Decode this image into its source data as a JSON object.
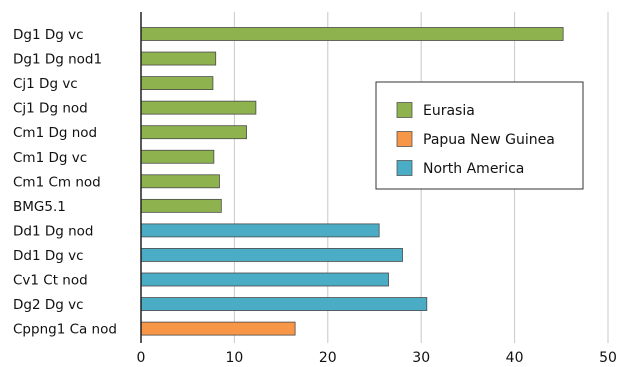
{
  "chart_data": {
    "type": "bar",
    "orientation": "horizontal",
    "title": "",
    "xlabel": "",
    "ylabel": "",
    "xlim": [
      0,
      50
    ],
    "x_ticks": [
      0,
      10,
      20,
      30,
      40,
      50
    ],
    "grid": "vertical",
    "legend_position": "right",
    "series": [
      {
        "name": "Eurasia",
        "color": "#8db24e"
      },
      {
        "name": "Papua New Guinea",
        "color": "#f79646"
      },
      {
        "name": "North America",
        "color": "#4bacc6"
      }
    ],
    "bars": [
      {
        "category": "Dg1 Dg vc",
        "value": 45.2,
        "series": "Eurasia"
      },
      {
        "category": "Dg1 Dg nod1",
        "value": 8.0,
        "series": "Eurasia"
      },
      {
        "category": "Cj1 Dg vc",
        "value": 7.7,
        "series": "Eurasia"
      },
      {
        "category": "Cj1 Dg nod",
        "value": 12.3,
        "series": "Eurasia"
      },
      {
        "category": "Cm1 Dg nod",
        "value": 11.3,
        "series": "Eurasia"
      },
      {
        "category": "Cm1 Dg vc",
        "value": 7.8,
        "series": "Eurasia"
      },
      {
        "category": "Cm1 Cm nod",
        "value": 8.4,
        "series": "Eurasia"
      },
      {
        "category": "BMG5.1",
        "value": 8.6,
        "series": "Eurasia"
      },
      {
        "category": "Dd1 Dg nod",
        "value": 25.5,
        "series": "North America"
      },
      {
        "category": "Dd1 Dg vc",
        "value": 28.0,
        "series": "North America"
      },
      {
        "category": "Cv1 Ct nod",
        "value": 26.5,
        "series": "North America"
      },
      {
        "category": "Dg2 Dg vc",
        "value": 30.6,
        "series": "North America"
      },
      {
        "category": "Cppng1 Ca nod",
        "value": 16.5,
        "series": "Papua New Guinea"
      }
    ]
  }
}
